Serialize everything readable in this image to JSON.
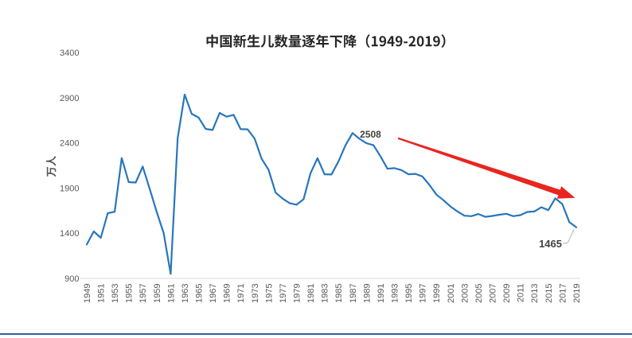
{
  "chart_data": {
    "type": "line",
    "title": "中国新生儿数量逐年下降（1949-2019）",
    "ylabel": "万人",
    "xlabel": "",
    "ylim": [
      900,
      3400
    ],
    "yticks": [
      900,
      1400,
      1900,
      2400,
      2900,
      3400
    ],
    "x_tick_interval": 2,
    "grid": false,
    "legend": "none",
    "years": [
      1949,
      1950,
      1951,
      1952,
      1953,
      1954,
      1955,
      1956,
      1957,
      1958,
      1959,
      1960,
      1961,
      1962,
      1963,
      1964,
      1965,
      1966,
      1967,
      1968,
      1969,
      1970,
      1971,
      1972,
      1973,
      1974,
      1975,
      1976,
      1977,
      1978,
      1979,
      1980,
      1981,
      1982,
      1983,
      1984,
      1985,
      1986,
      1987,
      1988,
      1989,
      1990,
      1991,
      1992,
      1993,
      1994,
      1995,
      1996,
      1997,
      1998,
      1999,
      2000,
      2001,
      2002,
      2003,
      2004,
      2005,
      2006,
      2007,
      2008,
      2009,
      2010,
      2011,
      2012,
      2013,
      2014,
      2015,
      2016,
      2017,
      2018,
      2019
    ],
    "values": [
      1275,
      1419,
      1349,
      1622,
      1637,
      2232,
      1965,
      1961,
      2138,
      1889,
      1635,
      1402,
      949,
      2451,
      2934,
      2721,
      2679,
      2554,
      2543,
      2731,
      2690,
      2710,
      2551,
      2550,
      2447,
      2226,
      2102,
      1849,
      1783,
      1733,
      1715,
      1776,
      2064,
      2230,
      2052,
      2050,
      2196,
      2374,
      2508,
      2445,
      2396,
      2374,
      2250,
      2113,
      2120,
      2098,
      2052,
      2057,
      2028,
      1934,
      1827,
      1765,
      1696,
      1641,
      1594,
      1588,
      1612,
      1581,
      1591,
      1604,
      1615,
      1588,
      1600,
      1635,
      1640,
      1687,
      1655,
      1786,
      1723,
      1523,
      1465
    ],
    "annotations": [
      {
        "text": "2508",
        "year": 1987,
        "value": 2508
      },
      {
        "text": "1465",
        "year": 2019,
        "value": 1465
      }
    ],
    "trend_arrow": {
      "shape": "tapered-arrow-down-right",
      "color": "#e8251f"
    }
  },
  "colors": {
    "background": "#ffffff",
    "line": "#2876bc",
    "arrow": "#e8251f",
    "title_text": "#262626",
    "tick_text": "#595959",
    "annotation_text": "#404040",
    "axis_line": "#d9d9d9",
    "leader_line": "#bfbfbf",
    "divider": "#30619e"
  }
}
